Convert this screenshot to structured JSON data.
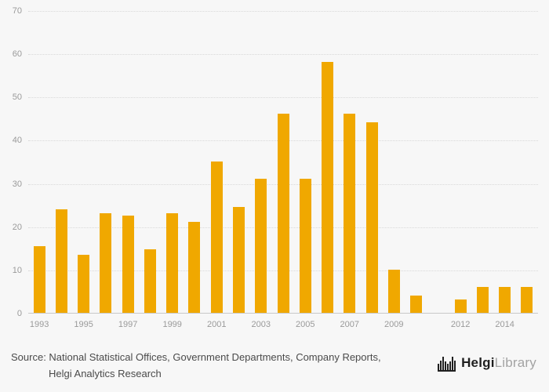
{
  "background_color": "#f7f7f7",
  "chart_data": {
    "type": "bar",
    "title": "",
    "xlabel": "",
    "ylabel": "",
    "x": [
      1993,
      1994,
      1995,
      1996,
      1997,
      1998,
      1999,
      2000,
      2001,
      2002,
      2003,
      2004,
      2005,
      2006,
      2007,
      2008,
      2009,
      2010,
      2011,
      2012,
      2013,
      2014,
      2015
    ],
    "values": [
      15.5,
      24,
      13.5,
      23,
      22.5,
      14.7,
      23,
      21,
      35,
      24.5,
      31,
      46,
      31,
      58,
      46,
      44,
      10,
      4,
      null,
      3,
      6,
      6,
      6
    ],
    "xticks": [
      1993,
      1995,
      1997,
      1999,
      2001,
      2003,
      2005,
      2007,
      2009,
      2012,
      2014
    ],
    "yticks": [
      0,
      10,
      20,
      30,
      40,
      50,
      60,
      70
    ],
    "ylim": [
      0,
      70
    ],
    "bar_color": "#F0A800",
    "grid": "horizontal-dotted",
    "legend": "none"
  },
  "footer": {
    "source_line1": "Source: National Statistical Offices, Government Departments, Company Reports,",
    "source_line2": "Helgi Analytics Research",
    "brand_bold": "Helgi",
    "brand_light": "Library"
  }
}
